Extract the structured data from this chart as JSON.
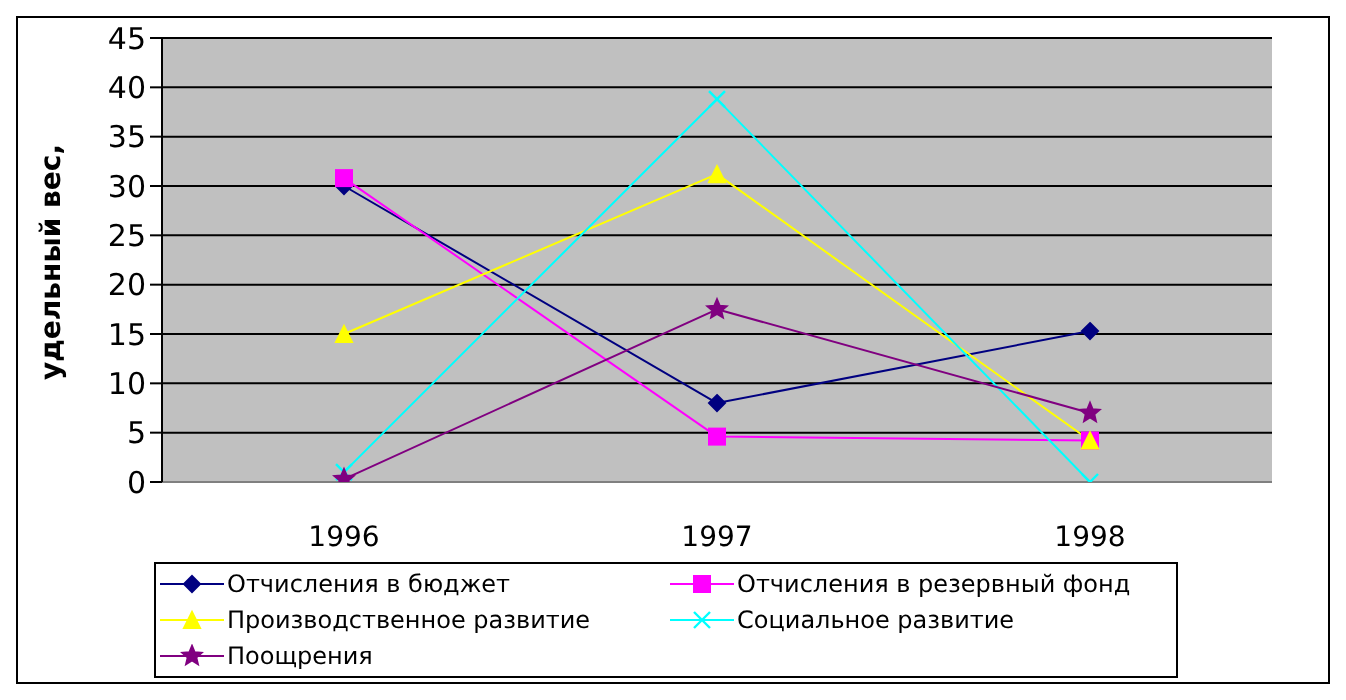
{
  "chart_data": {
    "type": "line",
    "ylabel": "удельный вес,",
    "categories": [
      "1996",
      "1997",
      "1998"
    ],
    "series": [
      {
        "name": "Отчисления в бюджет",
        "color": "#000080",
        "marker": "diamond",
        "values": [
          30,
          8,
          15.3
        ]
      },
      {
        "name": "Отчисления в резервный фонд",
        "color": "#ff00ff",
        "marker": "square",
        "values": [
          30.8,
          4.6,
          4.2
        ]
      },
      {
        "name": "Производственное развитие",
        "color": "#ffff00",
        "marker": "triangle",
        "values": [
          15,
          31.2,
          4.2
        ]
      },
      {
        "name": "Социальное развитие",
        "color": "#00ffff",
        "marker": "cross",
        "values": [
          1,
          38.8,
          0
        ]
      },
      {
        "name": "Поощрения",
        "color": "#800080",
        "marker": "star",
        "values": [
          0.3,
          17.5,
          7
        ]
      }
    ],
    "ylim": [
      0,
      45
    ],
    "yticks": [
      0,
      5,
      10,
      15,
      20,
      25,
      30,
      35,
      40,
      45
    ],
    "grid": "y",
    "legend": "bottom"
  }
}
